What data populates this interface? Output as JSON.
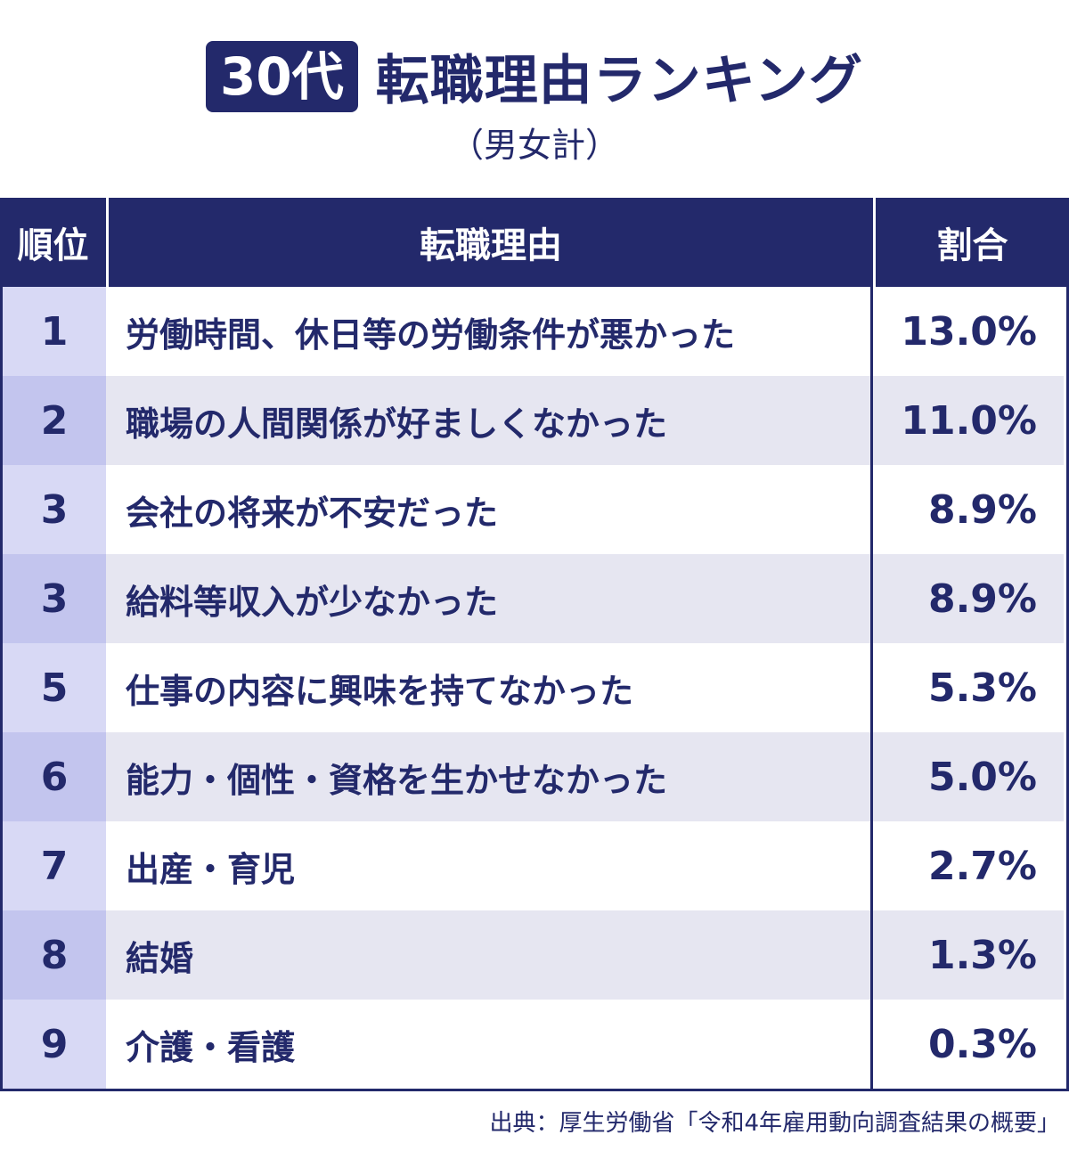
{
  "title": {
    "badge": "30代",
    "main": "転職理由ランキング",
    "subtitle": "（男女計）"
  },
  "chart_data": {
    "type": "table",
    "headers": [
      "順位",
      "転職理由",
      "割合"
    ],
    "rows": [
      {
        "rank": "1",
        "reason": "労働時間、休日等の労働条件が悪かった",
        "pct": "13.0%"
      },
      {
        "rank": "2",
        "reason": "職場の人間関係が好ましくなかった",
        "pct": "11.0%"
      },
      {
        "rank": "3",
        "reason": "会社の将来が不安だった",
        "pct": "8.9%"
      },
      {
        "rank": "3",
        "reason": "給料等収入が少なかった",
        "pct": "8.9%"
      },
      {
        "rank": "5",
        "reason": "仕事の内容に興味を持てなかった",
        "pct": "5.3%"
      },
      {
        "rank": "6",
        "reason": "能力・個性・資格を生かせなかった",
        "pct": "5.0%"
      },
      {
        "rank": "7",
        "reason": "出産・育児",
        "pct": "2.7%"
      },
      {
        "rank": "8",
        "reason": "結婚",
        "pct": "1.3%"
      },
      {
        "rank": "9",
        "reason": "介護・看護",
        "pct": "0.3%"
      }
    ]
  },
  "source": "出典：厚生労働省「令和4年雇用動向調査結果の概要」"
}
